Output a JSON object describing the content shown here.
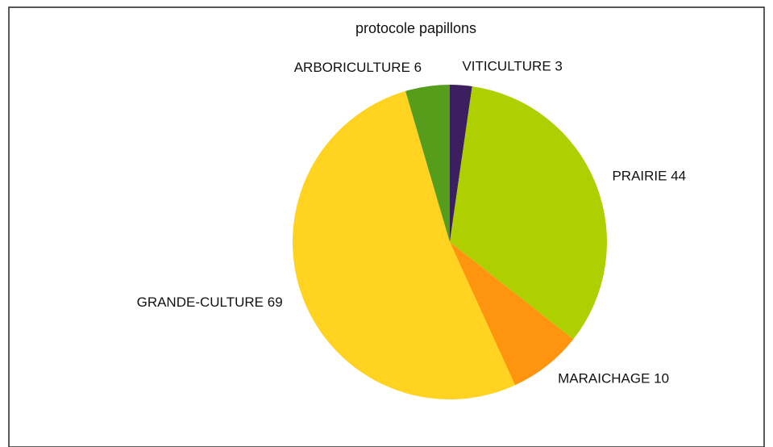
{
  "chart_data": {
    "type": "pie",
    "title": "protocole papillons",
    "categories": [
      "VITICULTURE",
      "PRAIRIE",
      "MARAICHAGE",
      "GRANDE-CULTURE",
      "ARBORICULTURE"
    ],
    "values": [
      3,
      44,
      10,
      69,
      6
    ],
    "colors": [
      "#3b1f5e",
      "#aecf00",
      "#ff950e",
      "#ffd320",
      "#579d1c"
    ]
  }
}
